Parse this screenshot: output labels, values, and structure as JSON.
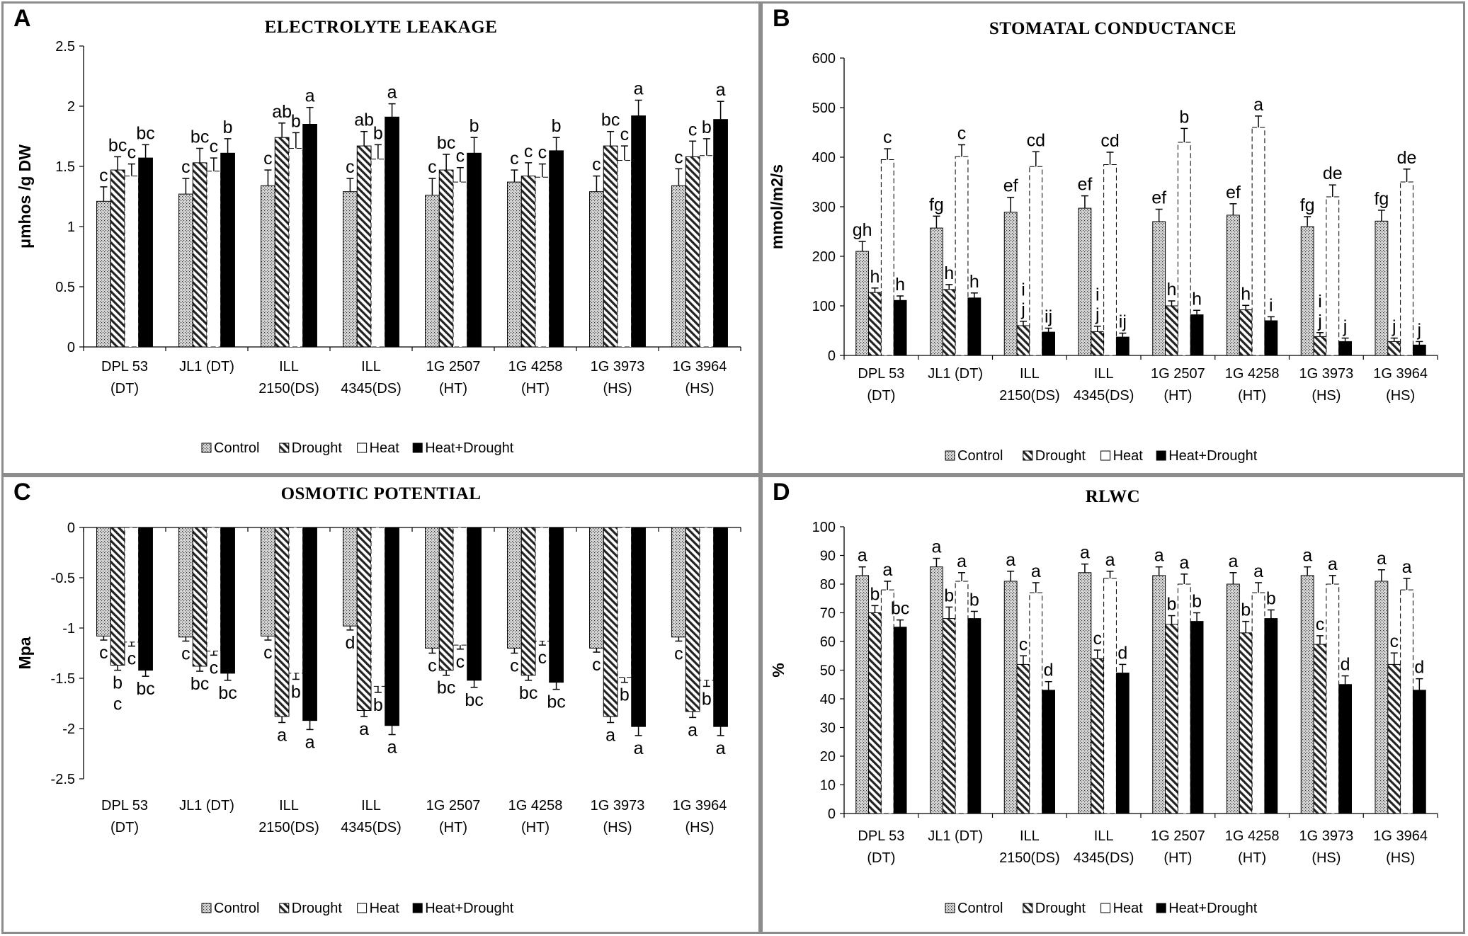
{
  "colors": {
    "control_fill": "#d9d9d9",
    "drought_fill": "#ffffff",
    "heat_fill": "#ffffff",
    "hd_fill": "#000000",
    "axis": "#000000",
    "border": "#8c8c8c"
  },
  "categories": [
    "DPL 53\n(DT)",
    "JL1 (DT)",
    "ILL\n2150(DS)",
    "ILL\n4345(DS)",
    "1G 2507\n(HT)",
    "1G 4258\n(HT)",
    "1G 3973\n(HS)",
    "1G 3964\n(HS)"
  ],
  "legend": [
    "Control",
    "Drought",
    "Heat",
    "Heat+Drought"
  ],
  "chart_data": [
    {
      "panel": "A",
      "type": "bar",
      "title": "ELECTROLYTE LEAKAGE",
      "ylabel": "μmhos /g DW",
      "xlabel": "",
      "ylim": [
        0,
        2.5
      ],
      "yticks": [
        0,
        0.5,
        1,
        1.5,
        2,
        2.5
      ],
      "ytick_labels": [
        "0",
        "0.5",
        "1",
        "1.5",
        "2",
        "2.5"
      ],
      "categories": [
        "DPL 53\n(DT)",
        "JL1 (DT)",
        "ILL\n2150(DS)",
        "ILL\n4345(DS)",
        "1G 2507\n(HT)",
        "1G 4258\n(HT)",
        "1G 3973\n(HS)",
        "1G 3964\n(HS)"
      ],
      "legend_position": "bottom",
      "series": [
        {
          "name": "Control",
          "values": [
            1.21,
            1.27,
            1.34,
            1.29,
            1.26,
            1.37,
            1.29,
            1.34
          ],
          "errors": [
            0.12,
            0.13,
            0.13,
            0.11,
            0.14,
            0.1,
            0.13,
            0.14
          ],
          "letters": [
            "c",
            "c",
            "c",
            "c",
            "c",
            "c",
            "c",
            "c"
          ]
        },
        {
          "name": "Drought",
          "values": [
            1.47,
            1.53,
            1.74,
            1.67,
            1.47,
            1.42,
            1.67,
            1.58
          ],
          "errors": [
            0.11,
            0.12,
            0.12,
            0.12,
            0.13,
            0.11,
            0.12,
            0.13
          ],
          "letters": [
            "bc",
            "bc",
            "ab",
            "ab",
            "bc",
            "c",
            "bc",
            "c"
          ]
        },
        {
          "name": "Heat",
          "values": [
            1.42,
            1.46,
            1.65,
            1.56,
            1.37,
            1.41,
            1.55,
            1.59
          ],
          "errors": [
            0.1,
            0.11,
            0.13,
            0.12,
            0.12,
            0.11,
            0.12,
            0.14
          ],
          "letters": [
            "c",
            "c",
            "b",
            "b",
            "c",
            "c",
            "c",
            "b"
          ]
        },
        {
          "name": "Heat+Drought",
          "values": [
            1.57,
            1.61,
            1.85,
            1.91,
            1.61,
            1.63,
            1.92,
            1.89
          ],
          "errors": [
            0.11,
            0.12,
            0.14,
            0.11,
            0.13,
            0.11,
            0.13,
            0.15
          ],
          "letters": [
            "bc",
            "b",
            "a",
            "a",
            "b",
            "b",
            "a",
            "a"
          ]
        }
      ]
    },
    {
      "panel": "B",
      "type": "bar",
      "title": "STOMATAL CONDUCTANCE",
      "ylabel": "mmol/m2/s",
      "xlabel": "",
      "ylim": [
        0,
        600
      ],
      "yticks": [
        0,
        100,
        200,
        300,
        400,
        500,
        600
      ],
      "ytick_labels": [
        "0",
        "100",
        "200",
        "300",
        "400",
        "500",
        "600"
      ],
      "categories": [
        "DPL 53\n(DT)",
        "JL1 (DT)",
        "ILL\n2150(DS)",
        "ILL\n4345(DS)",
        "1G 2507\n(HT)",
        "1G 4258\n(HT)",
        "1G 3973\n(HS)",
        "1G 3964\n(HS)"
      ],
      "legend_position": "bottom",
      "series": [
        {
          "name": "Control",
          "values": [
            210,
            257,
            289,
            297,
            270,
            283,
            260,
            271
          ],
          "errors": [
            20,
            24,
            30,
            25,
            25,
            23,
            20,
            22
          ],
          "letters": [
            "gh",
            "fg",
            "ef",
            "ef",
            "ef",
            "ef",
            "fg",
            "fg"
          ]
        },
        {
          "name": "Drought",
          "values": [
            127,
            133,
            60,
            48,
            100,
            92,
            38,
            28
          ],
          "errors": [
            9,
            10,
            9,
            11,
            10,
            9,
            8,
            7
          ],
          "letters": [
            "h",
            "h",
            "i\nj",
            "i\nj",
            "h",
            "h",
            "i\nj",
            "j"
          ]
        },
        {
          "name": "Heat",
          "values": [
            395,
            401,
            381,
            385,
            430,
            460,
            320,
            350
          ],
          "errors": [
            22,
            24,
            30,
            25,
            28,
            23,
            24,
            26
          ],
          "letters": [
            "c",
            "c",
            "cd",
            "cd",
            "b",
            "a",
            "de",
            "de"
          ]
        },
        {
          "name": "Heat+Drought",
          "values": [
            111,
            116,
            47,
            37,
            82,
            70,
            28,
            21
          ],
          "errors": [
            9,
            10,
            8,
            8,
            9,
            8,
            7,
            7
          ],
          "letters": [
            "h",
            "h",
            "ij",
            "ij",
            "h",
            "i",
            "j",
            "j"
          ]
        }
      ]
    },
    {
      "panel": "C",
      "type": "bar",
      "title": "OSMOTIC POTENTIAL",
      "ylabel": "Mpa",
      "xlabel": "",
      "ylim": [
        -2.5,
        0
      ],
      "yticks": [
        0,
        -0.5,
        -1,
        -1.5,
        -2,
        -2.5
      ],
      "ytick_labels": [
        "0",
        "-0.5",
        "-1",
        "-1.5",
        "-2",
        "-2.5"
      ],
      "categories": [
        "DPL 53\n(DT)",
        "JL1 (DT)",
        "ILL\n2150(DS)",
        "ILL\n4345(DS)",
        "1G 2507\n(HT)",
        "1G 4258\n(HT)",
        "1G 3973\n(HS)",
        "1G 3964\n(HS)"
      ],
      "legend_position": "bottom",
      "series": [
        {
          "name": "Control",
          "values": [
            -1.08,
            -1.09,
            -1.08,
            -0.98,
            -1.2,
            -1.2,
            -1.2,
            -1.09
          ],
          "errors": [
            0.04,
            0.04,
            0.04,
            0.04,
            0.05,
            0.05,
            0.04,
            0.04
          ],
          "letters": [
            "c",
            "c",
            "c",
            "d",
            "c",
            "c",
            "c",
            "c"
          ]
        },
        {
          "name": "Drought",
          "values": [
            -1.37,
            -1.38,
            -1.88,
            -1.82,
            -1.42,
            -1.47,
            -1.88,
            -1.83
          ],
          "errors": [
            0.05,
            0.05,
            0.06,
            0.06,
            0.05,
            0.05,
            0.06,
            0.06
          ],
          "letters": [
            "b\nc",
            "bc",
            "a",
            "a",
            "bc",
            "bc",
            "a",
            "a"
          ]
        },
        {
          "name": "Heat",
          "values": [
            -1.14,
            -1.23,
            -1.45,
            -1.58,
            -1.17,
            -1.13,
            -1.49,
            -1.52
          ],
          "errors": [
            0.04,
            0.04,
            0.06,
            0.06,
            0.04,
            0.04,
            0.05,
            0.06
          ],
          "letters": [
            "c",
            "c",
            "b",
            "b",
            "c",
            "c",
            "b",
            "b"
          ]
        },
        {
          "name": "Heat+Drought",
          "values": [
            -1.42,
            -1.45,
            -1.92,
            -1.97,
            -1.52,
            -1.54,
            -1.98,
            -1.98
          ],
          "errors": [
            0.06,
            0.07,
            0.09,
            0.09,
            0.07,
            0.07,
            0.09,
            0.09
          ],
          "letters": [
            "bc",
            "bc",
            "a",
            "a",
            "bc",
            "bc",
            "a",
            "a"
          ]
        }
      ]
    },
    {
      "panel": "D",
      "type": "bar",
      "title": "RLWC",
      "ylabel": "%",
      "xlabel": "",
      "ylim": [
        0,
        100
      ],
      "yticks": [
        0,
        10,
        20,
        30,
        40,
        50,
        60,
        70,
        80,
        90,
        100
      ],
      "ytick_labels": [
        "0",
        "10",
        "20",
        "30",
        "40",
        "50",
        "60",
        "70",
        "80",
        "90",
        "100"
      ],
      "categories": [
        "DPL 53\n(DT)",
        "JL1 (DT)",
        "ILL\n2150(DS)",
        "ILL\n4345(DS)",
        "1G 2507\n(HT)",
        "1G 4258\n(HT)",
        "1G 3973\n(HS)",
        "1G 3964\n(HS)"
      ],
      "legend_position": "bottom",
      "series": [
        {
          "name": "Control",
          "values": [
            83,
            86,
            81,
            84,
            83,
            80,
            83,
            81
          ],
          "errors": [
            3,
            3,
            3.5,
            3,
            3,
            4,
            3,
            4
          ],
          "letters": [
            "a",
            "a",
            "a",
            "a",
            "a",
            "a",
            "a",
            "a"
          ]
        },
        {
          "name": "Drought",
          "values": [
            70,
            68,
            52,
            54,
            66,
            63,
            59,
            52
          ],
          "errors": [
            2.5,
            4,
            3,
            3,
            3,
            4,
            3,
            4
          ],
          "letters": [
            "b",
            "b",
            "c",
            "c",
            "b",
            "b",
            "c",
            "c"
          ]
        },
        {
          "name": "Heat",
          "values": [
            78,
            81,
            77,
            82,
            80,
            77,
            80,
            78
          ],
          "errors": [
            3,
            3,
            3.5,
            2.5,
            3.5,
            3.5,
            3,
            4
          ],
          "letters": [
            "a",
            "a",
            "a",
            "a",
            "a",
            "a",
            "a",
            "a"
          ]
        },
        {
          "name": "Heat+Drought",
          "values": [
            65,
            68,
            43,
            49,
            67,
            68,
            45,
            43
          ],
          "errors": [
            2.5,
            2.5,
            3,
            3,
            3,
            3,
            3,
            4
          ],
          "letters": [
            "bc",
            "b",
            "d",
            "d",
            "b",
            "b",
            "d",
            "d"
          ]
        }
      ]
    }
  ]
}
